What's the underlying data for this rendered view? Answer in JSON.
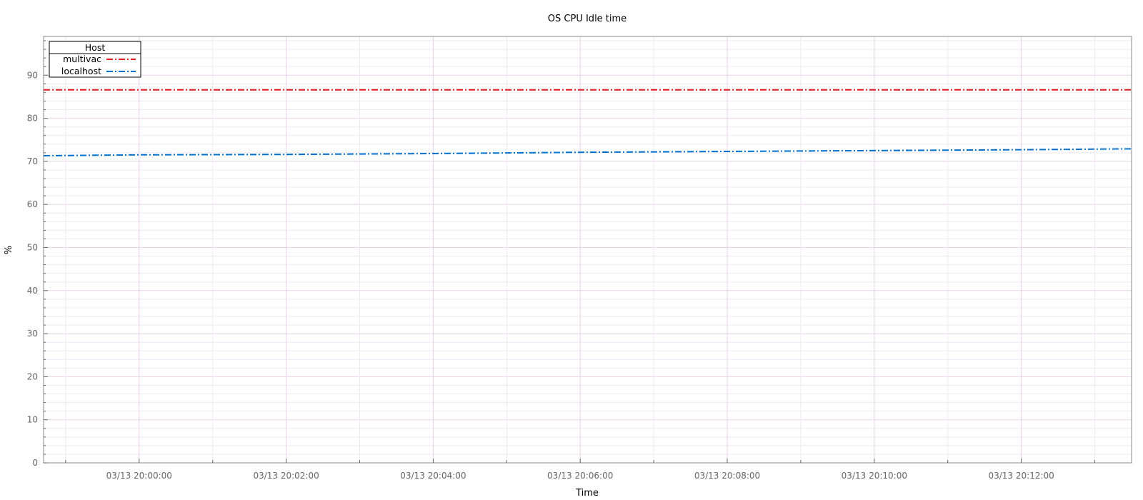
{
  "chart_data": {
    "type": "line",
    "title": "OS CPU Idle time",
    "xlabel": "Time",
    "ylabel": "%",
    "xlim": [
      "03/13 19:58:42",
      "03/13 20:13:30"
    ],
    "ylim": [
      0,
      99
    ],
    "grid": true,
    "x_ticks": [
      "03/13 20:00:00",
      "03/13 20:02:00",
      "03/13 20:04:00",
      "03/13 20:06:00",
      "03/13 20:08:00",
      "03/13 20:10:00",
      "03/13 20:12:00"
    ],
    "y_ticks": [
      0,
      10,
      20,
      30,
      40,
      50,
      60,
      70,
      80,
      90
    ],
    "legend": {
      "title": "Host",
      "position": "top-left"
    },
    "series": [
      {
        "name": "multivac",
        "color": "#e41a1c",
        "style": "dash-dot",
        "points": [
          [
            "03/13 19:58:42",
            86.6
          ],
          [
            "03/13 20:13:30",
            86.6
          ]
        ]
      },
      {
        "name": "localhost",
        "color": "#0072ce",
        "style": "dash-dot",
        "points": [
          [
            "03/13 19:58:42",
            71.3
          ],
          [
            "03/13 20:00:00",
            71.5
          ],
          [
            "03/13 20:02:00",
            71.6
          ],
          [
            "03/13 20:04:00",
            71.8
          ],
          [
            "03/13 20:06:00",
            72.1
          ],
          [
            "03/13 20:08:00",
            72.3
          ],
          [
            "03/13 20:10:00",
            72.5
          ],
          [
            "03/13 20:12:00",
            72.7
          ],
          [
            "03/13 20:13:30",
            72.9
          ]
        ]
      }
    ]
  }
}
